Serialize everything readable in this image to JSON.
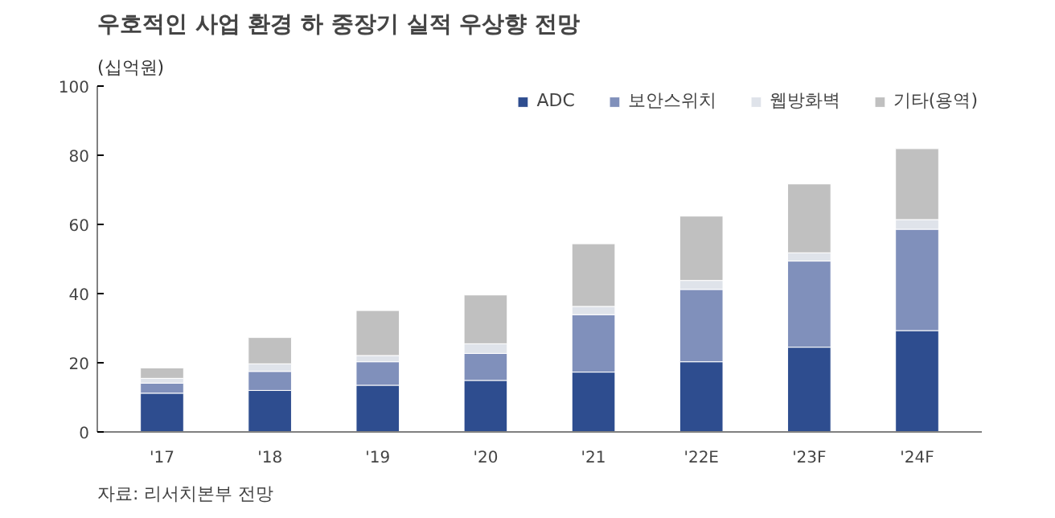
{
  "chart_data": {
    "type": "bar",
    "stacked": true,
    "title": "우호적인 사업 환경 하 중장기 실적 우상향 전망",
    "ylabel": "(십억원)",
    "categories": [
      "'17",
      "'18",
      "'19",
      "'20",
      "'21",
      "'22E",
      "'23F",
      "'24F"
    ],
    "series": [
      {
        "name": "ADC",
        "color": "#2e4d8f",
        "values": [
          11.2,
          12.0,
          13.5,
          14.9,
          17.3,
          20.3,
          24.5,
          29.3
        ]
      },
      {
        "name": "보안스위치",
        "color": "#8090bb",
        "values": [
          2.9,
          5.5,
          6.8,
          7.8,
          16.6,
          20.9,
          24.9,
          29.3
        ]
      },
      {
        "name": "웹방화벽",
        "color": "#dfe3ea",
        "values": [
          1.4,
          2.2,
          1.8,
          2.8,
          2.4,
          2.6,
          2.4,
          2.8
        ]
      },
      {
        "name": "기타(용역)",
        "color": "#c0c0c0",
        "values": [
          3.0,
          7.6,
          13.0,
          14.1,
          18.1,
          18.6,
          19.9,
          20.5
        ]
      }
    ],
    "ylim": [
      0,
      100
    ],
    "yticks": [
      0,
      20,
      40,
      60,
      80,
      100
    ],
    "grid": false,
    "legend": "top right",
    "annotations": [
      "자료: 리서치본부 전망"
    ]
  }
}
